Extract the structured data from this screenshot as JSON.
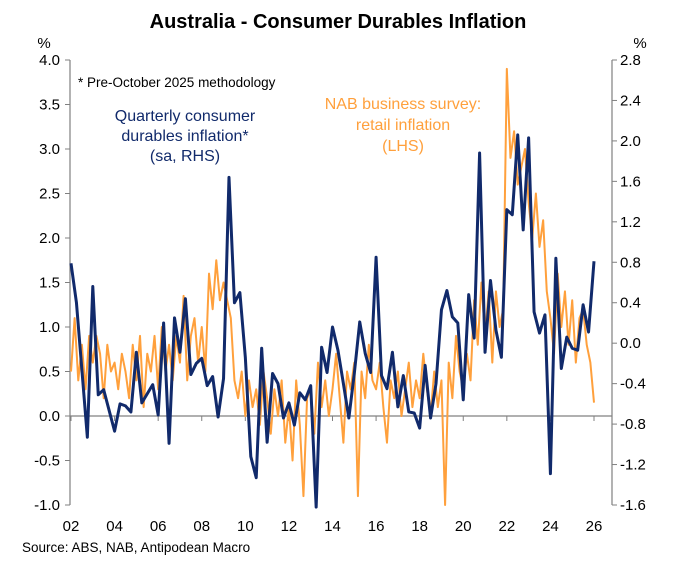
{
  "chart_data": {
    "type": "line",
    "title": "Australia - Consumer Durables Inflation",
    "left_axis": {
      "unit_label": "%",
      "ylim": [
        -1.0,
        4.0
      ],
      "ticks": [
        "4.0",
        "3.5",
        "3.0",
        "2.5",
        "2.0",
        "1.5",
        "1.0",
        "0.5",
        "0.0",
        "-0.5",
        "-1.0"
      ]
    },
    "right_axis": {
      "unit_label": "%",
      "ylim": [
        -1.6,
        2.8
      ],
      "ticks": [
        "2.8",
        "2.4",
        "2.0",
        "1.6",
        "1.2",
        "0.8",
        "0.4",
        "0.0",
        "-0.4",
        "-0.8",
        "-1.2",
        "-1.6"
      ]
    },
    "x_axis": {
      "xlim": [
        2002,
        2026
      ],
      "ticks": [
        "02",
        "04",
        "06",
        "08",
        "10",
        "12",
        "14",
        "16",
        "18",
        "20",
        "22",
        "24",
        "26"
      ]
    },
    "grid": false,
    "note": "* Pre-October 2025 methodology",
    "source": "Source: ABS, NAB, Antipodean Macro",
    "colors": {
      "blue": "#112a6b",
      "orange": "#ffa03c"
    },
    "series": [
      {
        "name_lines": [
          "Quarterly consumer",
          "durables inflation*",
          "(sa, RHS)"
        ],
        "axis": "right",
        "color": "#112a6b",
        "points": [
          [
            2002.0,
            0.79
          ],
          [
            2002.25,
            0.4
          ],
          [
            2002.75,
            -0.93
          ],
          [
            2003.0,
            0.56
          ],
          [
            2003.25,
            -0.51
          ],
          [
            2003.5,
            -0.46
          ],
          [
            2004.0,
            -0.87
          ],
          [
            2004.25,
            -0.6
          ],
          [
            2004.5,
            -0.62
          ],
          [
            2004.75,
            -0.68
          ],
          [
            2005.0,
            -0.09
          ],
          [
            2005.25,
            -0.59
          ],
          [
            2005.5,
            -0.5
          ],
          [
            2005.75,
            -0.41
          ],
          [
            2006.0,
            -0.71
          ],
          [
            2006.25,
            0.2
          ],
          [
            2006.5,
            -0.99
          ],
          [
            2006.75,
            0.25
          ],
          [
            2007.0,
            -0.09
          ],
          [
            2007.25,
            0.44
          ],
          [
            2007.5,
            -0.31
          ],
          [
            2007.75,
            -0.2
          ],
          [
            2008.0,
            -0.15
          ],
          [
            2008.25,
            -0.42
          ],
          [
            2008.5,
            -0.33
          ],
          [
            2008.75,
            -0.73
          ],
          [
            2009.0,
            -0.35
          ],
          [
            2009.25,
            1.64
          ],
          [
            2009.5,
            0.4
          ],
          [
            2009.75,
            0.5
          ],
          [
            2010.0,
            -0.14
          ],
          [
            2010.25,
            -1.12
          ],
          [
            2010.5,
            -1.33
          ],
          [
            2010.75,
            -0.05
          ],
          [
            2011.0,
            -0.98
          ],
          [
            2011.25,
            -0.3
          ],
          [
            2011.5,
            -0.4
          ],
          [
            2011.75,
            -0.74
          ],
          [
            2012.0,
            -0.59
          ],
          [
            2012.25,
            -0.81
          ],
          [
            2012.5,
            -0.49
          ],
          [
            2012.75,
            -0.56
          ],
          [
            2013.0,
            -0.42
          ],
          [
            2013.25,
            -1.62
          ],
          [
            2013.5,
            -0.04
          ],
          [
            2013.75,
            -0.29
          ],
          [
            2014.0,
            0.16
          ],
          [
            2014.25,
            -0.07
          ],
          [
            2014.5,
            -0.4
          ],
          [
            2014.75,
            -0.74
          ],
          [
            2015.0,
            -0.3
          ],
          [
            2015.25,
            0.21
          ],
          [
            2015.5,
            -0.1
          ],
          [
            2015.75,
            -0.29
          ],
          [
            2016.0,
            0.85
          ],
          [
            2016.25,
            -0.32
          ],
          [
            2016.5,
            -0.45
          ],
          [
            2016.75,
            -0.09
          ],
          [
            2017.0,
            -0.63
          ],
          [
            2017.25,
            -0.32
          ],
          [
            2017.5,
            -0.68
          ],
          [
            2017.75,
            -0.69
          ],
          [
            2018.0,
            -0.84
          ],
          [
            2018.25,
            -0.22
          ],
          [
            2018.5,
            -0.74
          ],
          [
            2018.75,
            -0.4
          ],
          [
            2019.0,
            0.33
          ],
          [
            2019.25,
            0.52
          ],
          [
            2019.5,
            0.26
          ],
          [
            2019.75,
            0.2
          ],
          [
            2020.0,
            -0.56
          ],
          [
            2020.25,
            0.48
          ],
          [
            2020.5,
            0.05
          ],
          [
            2020.75,
            1.88
          ],
          [
            2021.0,
            -0.09
          ],
          [
            2021.25,
            0.62
          ],
          [
            2021.5,
            0.13
          ],
          [
            2021.75,
            -0.14
          ],
          [
            2022.0,
            1.32
          ],
          [
            2022.25,
            1.27
          ],
          [
            2022.5,
            2.06
          ],
          [
            2022.75,
            1.12
          ],
          [
            2023.0,
            2.03
          ],
          [
            2023.25,
            0.31
          ],
          [
            2023.5,
            0.1
          ],
          [
            2023.75,
            0.28
          ],
          [
            2024.0,
            -1.29
          ],
          [
            2024.25,
            0.84
          ],
          [
            2024.5,
            -0.25
          ],
          [
            2024.75,
            0.06
          ],
          [
            2025.0,
            -0.05
          ],
          [
            2025.25,
            -0.07
          ],
          [
            2025.5,
            0.38
          ],
          [
            2025.75,
            0.11
          ],
          [
            2026.0,
            0.81
          ]
        ]
      },
      {
        "name_lines": [
          "NAB business survey:",
          "retail inflation",
          "(LHS)"
        ],
        "axis": "left",
        "color": "#ffa03c",
        "x_start": 2002,
        "step_months": 2,
        "values": [
          0.5,
          1.1,
          0.4,
          0.8,
          0.3,
          0.9,
          0.6,
          0.9,
          0.7,
          0.2,
          0.8,
          0.5,
          0.6,
          0.3,
          0.7,
          0.5,
          0.2,
          0.8,
          0.4,
          0.9,
          0.1,
          0.7,
          0.5,
          0.9,
          0.3,
          1.0,
          0.5,
          0.8,
          0.4,
          0.9,
          0.6,
          1.35,
          0.4,
          0.9,
          1.1,
          0.6,
          1.0,
          0.5,
          1.6,
          1.2,
          1.75,
          1.3,
          1.5,
          1.3,
          1.1,
          0.4,
          0.2,
          0.5,
          0.0,
          0.4,
          0.1,
          0.3,
          -0.1,
          0.5,
          0.2,
          -0.2,
          0.3,
          0.0,
          0.4,
          -0.3,
          0.1,
          -0.5,
          0.4,
          -0.1,
          -0.9,
          0.2,
          0.3,
          -0.2,
          0.6,
          0.1,
          0.4,
          0.0,
          0.3,
          0.7,
          0.2,
          -0.3,
          0.5,
          0.3,
          0.6,
          -0.9,
          0.5,
          0.2,
          0.8,
          0.4,
          0.3,
          0.6,
          0.1,
          -0.3,
          0.4,
          0.2,
          0.5,
          0.0,
          0.3,
          0.6,
          0.1,
          0.4,
          0.2,
          0.7,
          0.3,
          0.0,
          0.5,
          0.1,
          0.4,
          -1.0,
          0.6,
          0.2,
          0.9,
          0.5,
          0.3,
          0.7,
          0.4,
          1.3,
          0.8,
          1.5,
          0.9,
          1.4,
          0.6,
          1.4,
          1.0,
          1.2,
          3.9,
          2.9,
          3.2,
          2.6,
          2.8,
          3.0,
          2.4,
          2.0,
          2.5,
          1.9,
          2.2,
          1.4,
          1.1,
          0.7,
          1.6,
          1.0,
          1.4,
          0.8,
          1.3,
          0.6,
          1.1,
          1.2,
          0.8,
          0.6,
          0.15
        ]
      }
    ]
  }
}
